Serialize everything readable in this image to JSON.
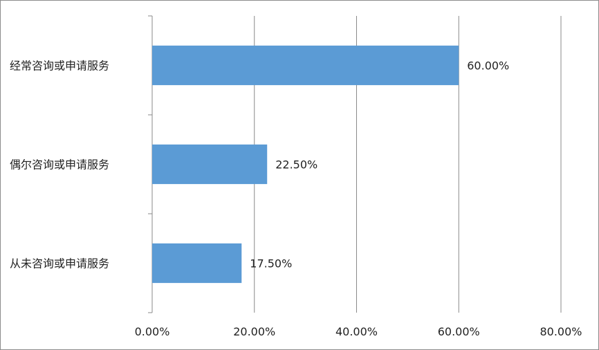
{
  "chart_data": {
    "type": "bar",
    "orientation": "horizontal",
    "title": "",
    "xlabel": "",
    "ylabel": "",
    "categories": [
      "经常咨询或申请服务",
      "偶尔咨询或申请服务",
      "从未咨询或申请服务"
    ],
    "values": [
      60.0,
      22.5,
      17.5
    ],
    "data_labels": [
      "60.00%",
      "22.50%",
      "17.50%"
    ],
    "xlim": [
      0,
      80
    ],
    "x_ticks": [
      0,
      20,
      40,
      60,
      80
    ],
    "x_tick_labels": [
      "0.00%",
      "20.00%",
      "40.00%",
      "60.00%",
      "80.00%"
    ],
    "grid": "vertical",
    "legend": "none",
    "bar_color": "#5b9bd5",
    "grid_color": "#898989"
  }
}
